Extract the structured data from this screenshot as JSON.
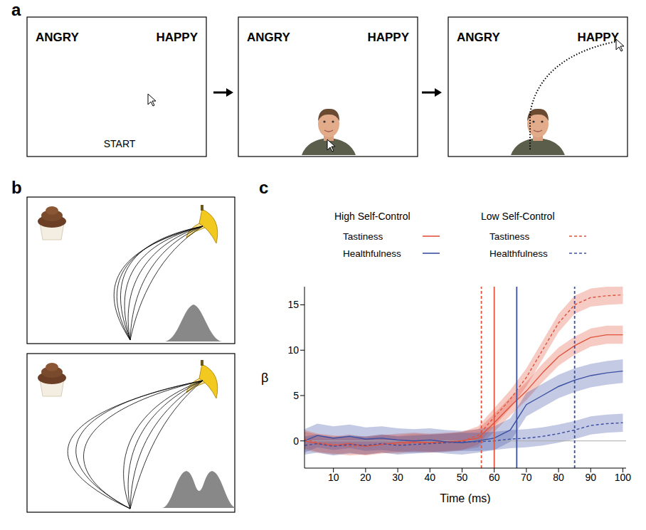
{
  "panel_labels": [
    "a",
    "b",
    "c"
  ],
  "panel_a": {
    "screens": [
      {
        "left": "ANGRY",
        "right": "HAPPY",
        "bottom": "START"
      },
      {
        "left": "ANGRY",
        "right": "HAPPY"
      },
      {
        "left": "ANGRY",
        "right": "HAPPY"
      }
    ]
  },
  "chart_data": {
    "type": "line",
    "x_label": "Time (ms)",
    "y_label": "β",
    "x": [
      1,
      5,
      10,
      15,
      20,
      25,
      30,
      35,
      40,
      45,
      50,
      55,
      60,
      65,
      70,
      75,
      80,
      85,
      90,
      95,
      100
    ],
    "xlim": [
      1,
      101
    ],
    "xticks": [
      10,
      20,
      30,
      40,
      50,
      60,
      70,
      80,
      90,
      100
    ],
    "ylim": [
      -3,
      17
    ],
    "yticks": [
      0,
      5,
      10,
      15
    ],
    "baseline": 0,
    "legend_groups": [
      "High Self-Control",
      "Low Self-Control"
    ],
    "series": [
      {
        "name": "Tastiness",
        "group": "High Self-Control",
        "color": "#e0533d",
        "line_style": "solid",
        "onset": 60,
        "ci": 1.0,
        "values": [
          0,
          -0.3,
          -0.5,
          -0.3,
          -0.6,
          -0.4,
          -0.2,
          -0.1,
          -0.2,
          -0.1,
          0,
          0.3,
          2,
          3.8,
          5.5,
          7.5,
          9.3,
          10.5,
          11.4,
          11.7,
          11.7
        ]
      },
      {
        "name": "Healthfulness",
        "group": "High Self-Control",
        "color": "#3b4fa3",
        "line_style": "solid",
        "onset": 67,
        "ci": 1.3,
        "values": [
          0,
          0.6,
          0.3,
          0.5,
          0.2,
          0.3,
          0.1,
          0,
          0.1,
          -0.1,
          -0.2,
          0,
          0.3,
          1.2,
          4,
          5,
          6,
          6.7,
          7.2,
          7.5,
          7.7
        ]
      },
      {
        "name": "Tastiness",
        "group": "Low Self-Control",
        "color": "#e0533d",
        "line_style": "dashed",
        "onset": 56,
        "ci": 1.0,
        "values": [
          0.2,
          -0.2,
          -0.4,
          -0.6,
          -0.5,
          -0.3,
          -0.4,
          -0.2,
          -0.3,
          -0.2,
          0,
          0.6,
          2.6,
          4.6,
          7,
          10,
          13,
          15,
          15.8,
          16,
          16.1
        ]
      },
      {
        "name": "Healthfulness",
        "group": "Low Self-Control",
        "color": "#3b4fa3",
        "line_style": "dashed",
        "onset": 85,
        "ci": 1.0,
        "values": [
          -0.5,
          -0.3,
          -0.6,
          -0.4,
          -0.5,
          -0.3,
          -0.5,
          -0.4,
          -0.3,
          -0.2,
          -0.1,
          -0.1,
          0,
          0.2,
          0.3,
          0.5,
          0.8,
          1.2,
          1.7,
          1.9,
          2
        ]
      }
    ]
  }
}
